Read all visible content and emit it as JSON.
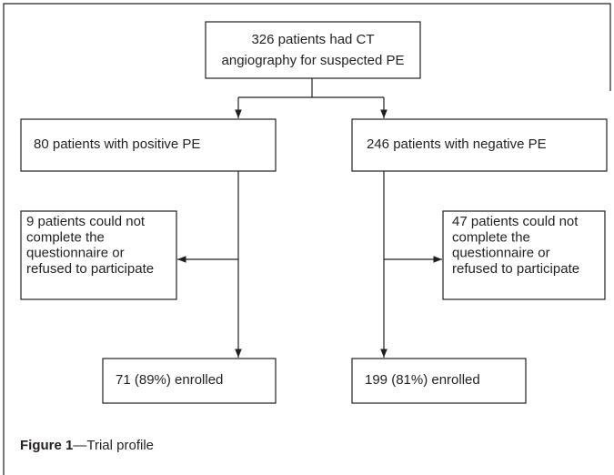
{
  "nodes": [
    {
      "lines": [
        "326 patients had CT",
        "angiography for suspected PE"
      ]
    },
    {
      "lines": [
        "80 patients with positive PE"
      ]
    },
    {
      "lines": [
        "246 patients with negative PE"
      ]
    },
    {
      "lines": [
        "9 patients could not",
        "complete the",
        "questionnaire or",
        "refused to participate"
      ]
    },
    {
      "lines": [
        "47 patients could not",
        "complete the",
        "questionnaire or",
        "refused to participate"
      ]
    },
    {
      "lines": [
        "71 (89%) enrolled"
      ]
    },
    {
      "lines": [
        "199 (81%) enrolled"
      ]
    }
  ],
  "caption": {
    "label": "Figure 1",
    "text": "—Trial profile"
  }
}
